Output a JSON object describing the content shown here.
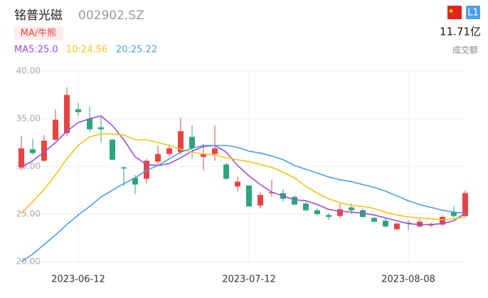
{
  "header": {
    "title": "铭普光磁",
    "code": "002902.SZ",
    "tag": "MA/牛熊",
    "level": "L1",
    "turnover": "11.71亿",
    "turnover_label": "成交额"
  },
  "chart_data": {
    "type": "candlestick",
    "categories": [
      null,
      null,
      null,
      null,
      null,
      "2023-06-12",
      null,
      null,
      null,
      null,
      null,
      null,
      null,
      null,
      null,
      null,
      null,
      null,
      null,
      null,
      "2023-07-12",
      null,
      null,
      null,
      null,
      null,
      null,
      null,
      null,
      null,
      null,
      null,
      null,
      null,
      "2023-08-08",
      null,
      null,
      null,
      null,
      null
    ],
    "open": [
      29.9,
      31.8,
      30.6,
      32.8,
      33.5,
      36.0,
      35.0,
      34.1,
      32.8,
      29.9,
      28.8,
      28.7,
      30.5,
      31.3,
      31.5,
      33.1,
      31.0,
      31.3,
      30.2,
      27.9,
      28.0,
      25.9,
      27.2,
      27.2,
      26.8,
      26.1,
      25.4,
      24.9,
      24.8,
      25.7,
      25.4,
      24.6,
      24.3,
      23.4,
      24.1,
      23.7,
      23.8,
      23.9,
      25.2,
      24.8
    ],
    "high": [
      33.2,
      32.9,
      33.3,
      36.0,
      38.3,
      36.7,
      36.3,
      35.2,
      32.9,
      30.0,
      29.1,
      30.8,
      32.2,
      32.3,
      35.1,
      34.3,
      32.4,
      34.3,
      30.4,
      28.9,
      28.0,
      27.3,
      28.6,
      27.6,
      27.0,
      26.3,
      25.6,
      25.1,
      26.1,
      26.1,
      25.6,
      24.7,
      24.6,
      24.1,
      24.4,
      24.5,
      24.1,
      24.9,
      25.9,
      27.5
    ],
    "low": [
      29.6,
      31.3,
      30.5,
      32.7,
      33.2,
      35.3,
      33.6,
      32.5,
      30.7,
      27.9,
      27.1,
      28.2,
      30.1,
      31.0,
      31.2,
      30.8,
      29.6,
      30.6,
      28.6,
      27.4,
      25.8,
      25.6,
      26.8,
      26.3,
      25.9,
      25.3,
      24.9,
      24.4,
      24.6,
      25.0,
      24.6,
      24.1,
      23.6,
      23.3,
      23.3,
      23.6,
      23.6,
      23.7,
      24.6,
      24.7
    ],
    "close": [
      31.9,
      31.4,
      32.7,
      34.9,
      37.5,
      35.7,
      33.9,
      33.9,
      30.7,
      29.8,
      28.1,
      30.6,
      31.3,
      31.9,
      33.7,
      31.9,
      31.3,
      31.9,
      28.7,
      28.4,
      25.8,
      27.0,
      27.3,
      26.6,
      26.0,
      25.4,
      25.0,
      24.7,
      25.5,
      25.4,
      24.7,
      24.2,
      23.7,
      24.0,
      24.0,
      24.2,
      23.9,
      24.7,
      24.8,
      27.2
    ],
    "up_color": "#e84343",
    "down_color": "#2aa57f",
    "series": [
      {
        "name": "MA5:25.0",
        "color": "#9b4de0",
        "values": [
          29.9,
          30.6,
          31.5,
          32.5,
          33.7,
          34.6,
          35.0,
          35.3,
          34.3,
          32.8,
          31.0,
          30.2,
          30.1,
          30.3,
          30.9,
          31.6,
          32.1,
          32.2,
          31.5,
          30.1,
          29.0,
          28.1,
          27.3,
          26.9,
          26.5,
          26.4,
          26.0,
          25.5,
          25.3,
          25.2,
          25.1,
          24.9,
          24.6,
          24.3,
          24.0,
          23.9,
          23.9,
          24.0,
          24.3,
          25.1
        ]
      },
      {
        "name": "10:24.56",
        "color": "#f0c419",
        "values": [
          25.1,
          26.3,
          27.6,
          29.1,
          30.8,
          32.2,
          33.1,
          33.4,
          33.4,
          33.3,
          32.8,
          32.8,
          32.5,
          32.2,
          31.8,
          31.5,
          31.3,
          31.2,
          30.9,
          30.7,
          30.5,
          30.2,
          29.9,
          29.4,
          28.8,
          27.9,
          27.2,
          26.6,
          26.2,
          25.9,
          25.8,
          25.6,
          25.2,
          24.9,
          24.7,
          24.6,
          24.5,
          24.4,
          24.5,
          24.7
        ]
      },
      {
        "name": "20:25.22",
        "color": "#4a9fe8",
        "values": [
          20.0,
          20.8,
          21.8,
          22.8,
          23.9,
          24.9,
          25.8,
          26.8,
          27.5,
          28.2,
          28.8,
          29.6,
          30.1,
          30.8,
          31.5,
          31.9,
          32.2,
          32.2,
          32.2,
          32.0,
          31.6,
          31.4,
          31.1,
          30.7,
          30.1,
          29.7,
          29.3,
          28.9,
          28.6,
          28.4,
          28.1,
          27.8,
          27.4,
          26.9,
          26.4,
          26.0,
          25.7,
          25.4,
          25.2,
          25.1
        ]
      }
    ],
    "ylim": [
      20,
      40
    ],
    "yticks": [
      {
        "value": 40,
        "label": "40.00"
      },
      {
        "value": 35,
        "label": "35.00"
      },
      {
        "value": 30,
        "label": "30.00"
      },
      {
        "value": 25,
        "label": "25.00"
      },
      {
        "value": 20,
        "label": "20.00"
      }
    ],
    "grid": true
  }
}
